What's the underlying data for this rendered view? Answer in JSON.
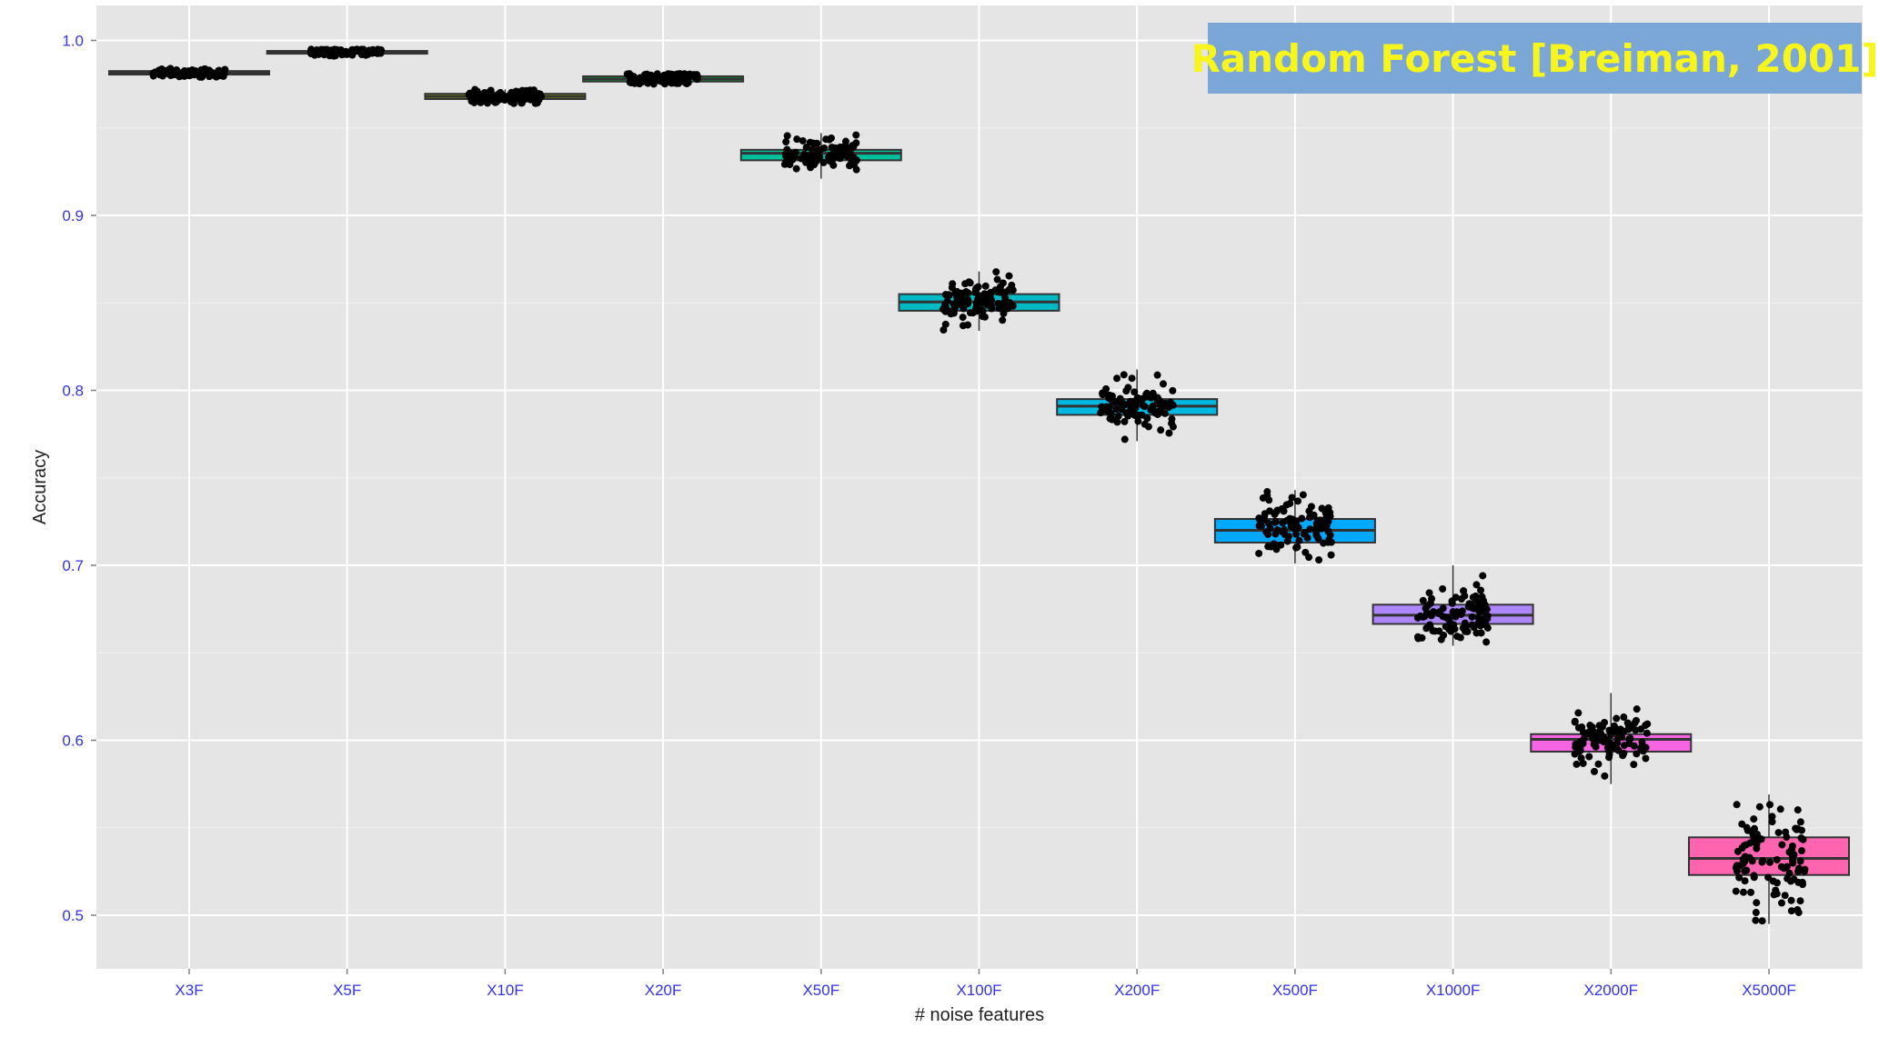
{
  "chart_data": {
    "type": "boxplot",
    "title": "Random Forest [Breiman, 2001]",
    "xlabel": "# noise features",
    "ylabel": "Accuracy",
    "ylim": [
      0.47,
      1.02
    ],
    "yticks": [
      0.5,
      0.6,
      0.7,
      0.8,
      0.9,
      1.0
    ],
    "ytick_labels": [
      "0.5",
      "0.6",
      "0.7",
      "0.8",
      "0.9",
      "1.0"
    ],
    "grid": true,
    "legend": "none",
    "categories": [
      "X3F",
      "X5F",
      "X10F",
      "X20F",
      "X50F",
      "X100F",
      "X200F",
      "X500F",
      "X1000F",
      "X2000F",
      "X5000F"
    ],
    "series": [
      {
        "category": "X3F",
        "q1": 0.9805,
        "median": 0.9815,
        "q3": 0.9825,
        "min": 0.979,
        "max": 0.984,
        "jitter_min": 0.979,
        "jitter_max": 0.984,
        "color": "#F8766D"
      },
      {
        "category": "X5F",
        "q1": 0.9925,
        "median": 0.9932,
        "q3": 0.994,
        "min": 0.991,
        "max": 0.995,
        "jitter_min": 0.991,
        "jitter_max": 0.995,
        "color": "#D39200"
      },
      {
        "category": "X10F",
        "q1": 0.9665,
        "median": 0.968,
        "q3": 0.9695,
        "min": 0.964,
        "max": 0.972,
        "jitter_min": 0.964,
        "jitter_max": 0.972,
        "color": "#93AA00"
      },
      {
        "category": "X20F",
        "q1": 0.9765,
        "median": 0.978,
        "q3": 0.9795,
        "min": 0.975,
        "max": 0.981,
        "jitter_min": 0.975,
        "jitter_max": 0.981,
        "color": "#00BA38"
      },
      {
        "category": "X50F",
        "q1": 0.9315,
        "median": 0.9355,
        "q3": 0.9375,
        "min": 0.921,
        "max": 0.947,
        "jitter_min": 0.921,
        "jitter_max": 0.947,
        "color": "#00C19F"
      },
      {
        "category": "X100F",
        "q1": 0.8455,
        "median": 0.8505,
        "q3": 0.855,
        "min": 0.834,
        "max": 0.868,
        "jitter_min": 0.834,
        "jitter_max": 0.868,
        "color": "#00B9C4"
      },
      {
        "category": "X200F",
        "q1": 0.786,
        "median": 0.791,
        "q3": 0.795,
        "min": 0.771,
        "max": 0.812,
        "jitter_min": 0.771,
        "jitter_max": 0.812,
        "color": "#00B9E3"
      },
      {
        "category": "X500F",
        "q1": 0.713,
        "median": 0.72,
        "q3": 0.7265,
        "min": 0.701,
        "max": 0.743,
        "jitter_min": 0.701,
        "jitter_max": 0.743,
        "color": "#00A9FF"
      },
      {
        "category": "X1000F",
        "q1": 0.6665,
        "median": 0.6715,
        "q3": 0.6775,
        "min": 0.654,
        "max": 0.7,
        "jitter_min": 0.654,
        "jitter_max": 0.7,
        "color": "#AE87FF"
      },
      {
        "category": "X2000F",
        "q1": 0.5935,
        "median": 0.6005,
        "q3": 0.6035,
        "min": 0.575,
        "max": 0.627,
        "jitter_min": 0.575,
        "jitter_max": 0.627,
        "color": "#F564E3"
      },
      {
        "category": "X5000F",
        "q1": 0.523,
        "median": 0.5325,
        "q3": 0.5445,
        "min": 0.495,
        "max": 0.569,
        "jitter_min": 0.495,
        "jitter_max": 0.569,
        "color": "#FF64B0"
      }
    ],
    "points_per_group": 100
  }
}
